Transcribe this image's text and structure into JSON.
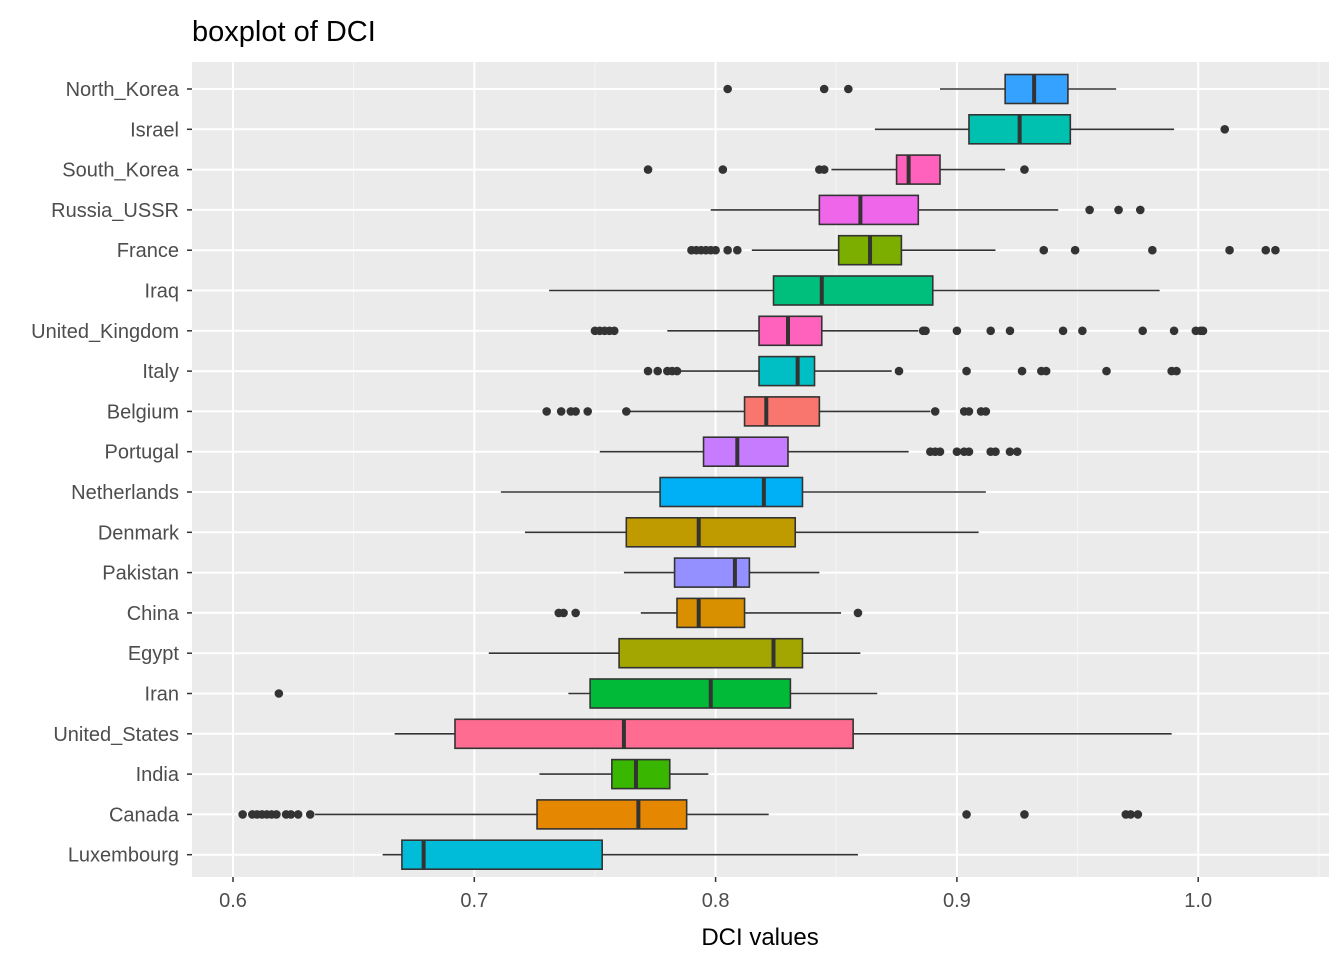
{
  "chart_data": {
    "type": "boxplot",
    "title": "boxplot of DCI",
    "xlabel": "DCI values",
    "ylabel": "",
    "xlim": [
      0.585,
      1.05
    ],
    "x_ticks": [
      0.6,
      0.7,
      0.8,
      0.9,
      1.0
    ],
    "x_tick_labels": [
      "0.6",
      "0.7",
      "0.8",
      "0.9",
      "1.0"
    ],
    "grid": true,
    "legend": "none",
    "series": [
      {
        "name": "North_Korea",
        "color": "#35A2FF",
        "whisker_low": 0.893,
        "q1": 0.92,
        "median": 0.932,
        "q3": 0.946,
        "whisker_high": 0.966,
        "outliers": [
          0.805,
          0.845,
          0.855
        ]
      },
      {
        "name": "Israel",
        "color": "#00C0AF",
        "whisker_low": 0.866,
        "q1": 0.905,
        "median": 0.926,
        "q3": 0.947,
        "whisker_high": 0.99,
        "outliers": [
          1.011
        ]
      },
      {
        "name": "South_Korea",
        "color": "#FF62BC",
        "whisker_low": 0.848,
        "q1": 0.875,
        "median": 0.88,
        "q3": 0.893,
        "whisker_high": 0.92,
        "outliers": [
          0.772,
          0.803,
          0.843,
          0.845,
          0.928
        ]
      },
      {
        "name": "Russia_USSR",
        "color": "#F066EA",
        "whisker_low": 0.798,
        "q1": 0.843,
        "median": 0.86,
        "q3": 0.884,
        "whisker_high": 0.942,
        "outliers": [
          0.955,
          0.967,
          0.976
        ]
      },
      {
        "name": "France",
        "color": "#7CAE00",
        "whisker_low": 0.815,
        "q1": 0.851,
        "median": 0.864,
        "q3": 0.877,
        "whisker_high": 0.916,
        "outliers": [
          0.79,
          0.792,
          0.794,
          0.796,
          0.798,
          0.8,
          0.805,
          0.809,
          0.936,
          0.949,
          0.981,
          1.013,
          1.028,
          1.032
        ]
      },
      {
        "name": "Iraq",
        "color": "#00BF7D",
        "whisker_low": 0.731,
        "q1": 0.824,
        "median": 0.844,
        "q3": 0.89,
        "whisker_high": 0.984,
        "outliers": []
      },
      {
        "name": "United_Kingdom",
        "color": "#FF62BC",
        "whisker_low": 0.78,
        "q1": 0.818,
        "median": 0.83,
        "q3": 0.844,
        "whisker_high": 0.884,
        "outliers": [
          0.75,
          0.752,
          0.754,
          0.756,
          0.758,
          0.886,
          0.887,
          0.9,
          0.914,
          0.922,
          0.944,
          0.952,
          0.977,
          0.99,
          0.999,
          1.001,
          1.002
        ]
      },
      {
        "name": "Italy",
        "color": "#00BFC4",
        "whisker_low": 0.785,
        "q1": 0.818,
        "median": 0.834,
        "q3": 0.841,
        "whisker_high": 0.873,
        "outliers": [
          0.772,
          0.776,
          0.78,
          0.782,
          0.784,
          0.876,
          0.904,
          0.927,
          0.935,
          0.937,
          0.962,
          0.989,
          0.991
        ]
      },
      {
        "name": "Belgium",
        "color": "#F8766D",
        "whisker_low": 0.764,
        "q1": 0.812,
        "median": 0.821,
        "q3": 0.843,
        "whisker_high": 0.889,
        "outliers": [
          0.73,
          0.736,
          0.74,
          0.742,
          0.747,
          0.763,
          0.891,
          0.903,
          0.905,
          0.91,
          0.912
        ]
      },
      {
        "name": "Portugal",
        "color": "#C77CFF",
        "whisker_low": 0.752,
        "q1": 0.795,
        "median": 0.809,
        "q3": 0.83,
        "whisker_high": 0.88,
        "outliers": [
          0.889,
          0.891,
          0.893,
          0.9,
          0.903,
          0.905,
          0.914,
          0.916,
          0.922,
          0.925
        ]
      },
      {
        "name": "Netherlands",
        "color": "#00B0F6",
        "whisker_low": 0.711,
        "q1": 0.777,
        "median": 0.82,
        "q3": 0.836,
        "whisker_high": 0.912,
        "outliers": []
      },
      {
        "name": "Denmark",
        "color": "#C09B00",
        "whisker_low": 0.721,
        "q1": 0.763,
        "median": 0.793,
        "q3": 0.833,
        "whisker_high": 0.909,
        "outliers": []
      },
      {
        "name": "Pakistan",
        "color": "#9590FF",
        "whisker_low": 0.762,
        "q1": 0.783,
        "median": 0.808,
        "q3": 0.814,
        "whisker_high": 0.843,
        "outliers": []
      },
      {
        "name": "China",
        "color": "#D89000",
        "whisker_low": 0.769,
        "q1": 0.784,
        "median": 0.793,
        "q3": 0.812,
        "whisker_high": 0.852,
        "outliers": [
          0.735,
          0.737,
          0.742,
          0.859
        ]
      },
      {
        "name": "Egypt",
        "color": "#A3A500",
        "whisker_low": 0.706,
        "q1": 0.76,
        "median": 0.824,
        "q3": 0.836,
        "whisker_high": 0.86,
        "outliers": []
      },
      {
        "name": "Iran",
        "color": "#00BA38",
        "whisker_low": 0.739,
        "q1": 0.748,
        "median": 0.798,
        "q3": 0.831,
        "whisker_high": 0.867,
        "outliers": [
          0.619
        ]
      },
      {
        "name": "United_States",
        "color": "#FF6C91",
        "whisker_low": 0.667,
        "q1": 0.692,
        "median": 0.762,
        "q3": 0.857,
        "whisker_high": 0.989,
        "outliers": []
      },
      {
        "name": "India",
        "color": "#39B600",
        "whisker_low": 0.727,
        "q1": 0.757,
        "median": 0.767,
        "q3": 0.781,
        "whisker_high": 0.797,
        "outliers": []
      },
      {
        "name": "Canada",
        "color": "#E58700",
        "whisker_low": 0.634,
        "q1": 0.726,
        "median": 0.768,
        "q3": 0.788,
        "whisker_high": 0.822,
        "outliers": [
          0.604,
          0.608,
          0.61,
          0.612,
          0.614,
          0.616,
          0.618,
          0.622,
          0.624,
          0.627,
          0.632,
          0.904,
          0.928,
          0.97,
          0.972,
          0.975
        ]
      },
      {
        "name": "Luxembourg",
        "color": "#00BCD8",
        "whisker_low": 0.662,
        "q1": 0.67,
        "median": 0.679,
        "q3": 0.753,
        "whisker_high": 0.859,
        "outliers": []
      }
    ]
  }
}
